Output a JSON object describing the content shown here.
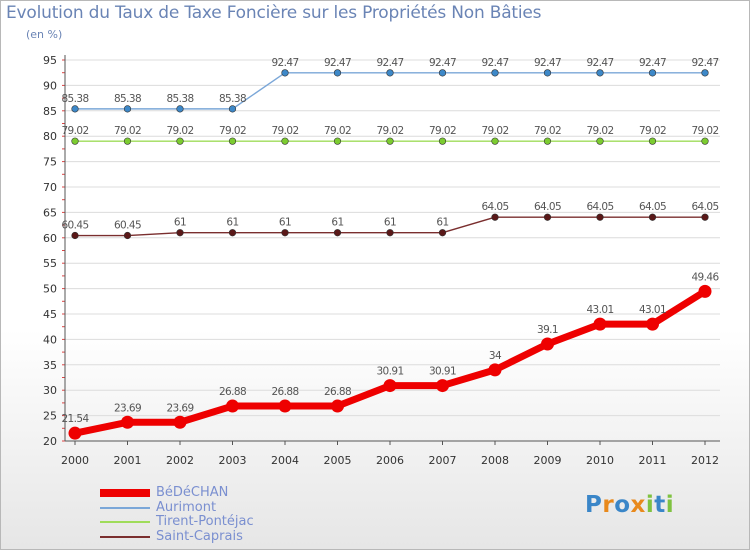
{
  "logo": "Proxiti",
  "chart_data": {
    "type": "line",
    "title": "Evolution du Taux de Taxe Foncière sur les Propriétés Non Bâties",
    "ylabel": "(en %)",
    "xlabel": "",
    "x": [
      "2000",
      "2001",
      "2002",
      "2003",
      "2004",
      "2005",
      "2006",
      "2007",
      "2008",
      "2009",
      "2010",
      "2011",
      "2012"
    ],
    "ylim": [
      20,
      95
    ],
    "yticks": [
      20,
      25,
      30,
      35,
      40,
      45,
      50,
      55,
      60,
      65,
      70,
      75,
      80,
      85,
      90,
      95
    ],
    "grid": "horizontal",
    "legend_position": "bottom-left",
    "series": [
      {
        "name": "BéDéCHAN",
        "color": "#ee0000",
        "values": [
          21.54,
          23.69,
          23.69,
          26.88,
          26.88,
          26.88,
          30.91,
          30.91,
          34,
          39.1,
          43.01,
          43.01,
          49.46
        ],
        "labels": [
          "21.54",
          "23.69",
          "23.69",
          "26.88",
          "26.88",
          "26.88",
          "30.91",
          "30.91",
          "34",
          "39.1",
          "43.01",
          "43.01",
          "49.46"
        ]
      },
      {
        "name": "Aurimont",
        "color": "#7ba7d8",
        "values": [
          85.38,
          85.38,
          85.38,
          85.38,
          92.47,
          92.47,
          92.47,
          92.47,
          92.47,
          92.47,
          92.47,
          92.47,
          92.47
        ],
        "labels": [
          "85.38",
          "85.38",
          "85.38",
          "85.38",
          "92.47",
          "92.47",
          "92.47",
          "92.47",
          "92.47",
          "92.47",
          "92.47",
          "92.47",
          "92.47"
        ]
      },
      {
        "name": "Tirent-Pontéjac",
        "color": "#9fdc5a",
        "values": [
          79.02,
          79.02,
          79.02,
          79.02,
          79.02,
          79.02,
          79.02,
          79.02,
          79.02,
          79.02,
          79.02,
          79.02,
          79.02
        ],
        "labels": [
          "79.02",
          "79.02",
          "79.02",
          "79.02",
          "79.02",
          "79.02",
          "79.02",
          "79.02",
          "79.02",
          "79.02",
          "79.02",
          "79.02",
          "79.02"
        ]
      },
      {
        "name": "Saint-Caprais",
        "color": "#7a2e2e",
        "values": [
          60.45,
          60.45,
          61,
          61,
          61,
          61,
          61,
          61,
          64.05,
          64.05,
          64.05,
          64.05,
          64.05
        ],
        "labels": [
          "60.45",
          "60.45",
          "61",
          "61",
          "61",
          "61",
          "61",
          "61",
          "64.05",
          "64.05",
          "64.05",
          "64.05",
          "64.05"
        ]
      }
    ]
  }
}
